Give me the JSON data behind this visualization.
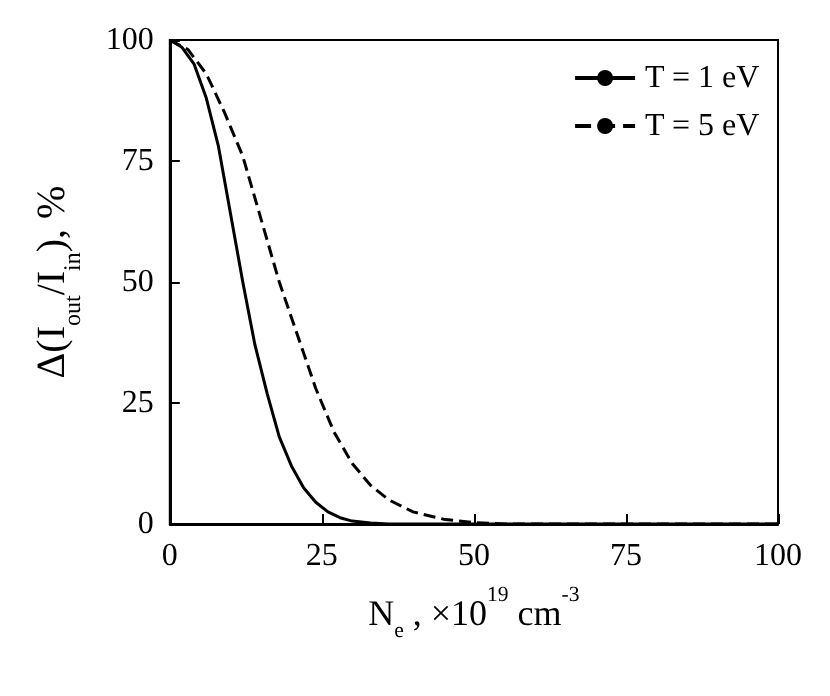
{
  "chart_data": {
    "type": "line",
    "xlabel": "N$_{e}$ , ×10$^{19}$ cm$^{-3}$",
    "ylabel": "Δ(I$_{out}$/I$_{in}$), %",
    "xlim": [
      0,
      100
    ],
    "xticks": [
      0,
      25,
      50,
      75,
      100
    ],
    "ylim": [
      0,
      100
    ],
    "yticks": [
      0,
      25,
      50,
      75,
      100
    ],
    "grid": false,
    "legend": "top right",
    "marker": "none",
    "series": [
      {
        "name": "T = 1 eV",
        "color": "#000000",
        "line_style": "solid",
        "x": [
          0,
          2,
          4,
          6,
          8,
          10,
          12,
          14,
          16,
          18,
          20,
          22,
          24,
          26,
          28,
          30,
          33,
          36,
          100
        ],
        "values": [
          100,
          98.5,
          95,
          88,
          78,
          64,
          50,
          37,
          27,
          18,
          12,
          7.5,
          4.5,
          2.5,
          1.3,
          0.6,
          0.2,
          0,
          0
        ]
      },
      {
        "name": "T = 5 eV",
        "color": "#000000",
        "line_style": "dashed",
        "x": [
          0,
          3,
          6,
          9,
          12,
          15,
          18,
          21,
          24,
          27,
          30,
          33,
          36,
          40,
          45,
          50,
          55,
          100
        ],
        "values": [
          100,
          98,
          93,
          85,
          76,
          63,
          50,
          39,
          28,
          19,
          12.5,
          8,
          5,
          2.5,
          1,
          0.3,
          0,
          0
        ]
      }
    ]
  }
}
